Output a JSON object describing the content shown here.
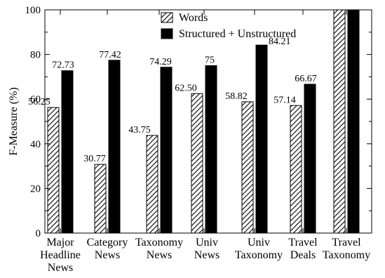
{
  "chart_data": {
    "type": "bar",
    "title": "",
    "xlabel": "",
    "ylabel": "F-Measure (%)",
    "ylim": [
      0,
      100
    ],
    "yticks": [
      0,
      20,
      40,
      60,
      80,
      100
    ],
    "grid": false,
    "legend_position": "top-center",
    "categories": [
      [
        "Major",
        "Headline",
        "News"
      ],
      [
        "Category",
        "News"
      ],
      [
        "Taxonomy",
        "News"
      ],
      [
        "Univ",
        "News"
      ],
      [
        "Univ",
        "Taxonomy"
      ],
      [
        "Travel",
        "Deals"
      ],
      [
        "Travel",
        "Taxonomy"
      ]
    ],
    "series": [
      {
        "name": "Words",
        "pattern": "hatched",
        "values": [
          56.25,
          30.77,
          43.75,
          62.5,
          58.82,
          57.14,
          100
        ],
        "labels": [
          "56.25",
          "30.77",
          "43.75",
          "62.50",
          "58.82",
          "57.14",
          ""
        ]
      },
      {
        "name": "Structured + Unstructured",
        "pattern": "solid",
        "color": "#000000",
        "values": [
          72.73,
          77.42,
          74.29,
          75,
          84.21,
          66.67,
          100
        ],
        "labels": [
          "72.73",
          "77.42",
          "74.29",
          "75",
          "84.21",
          "66.67",
          ""
        ]
      }
    ]
  }
}
